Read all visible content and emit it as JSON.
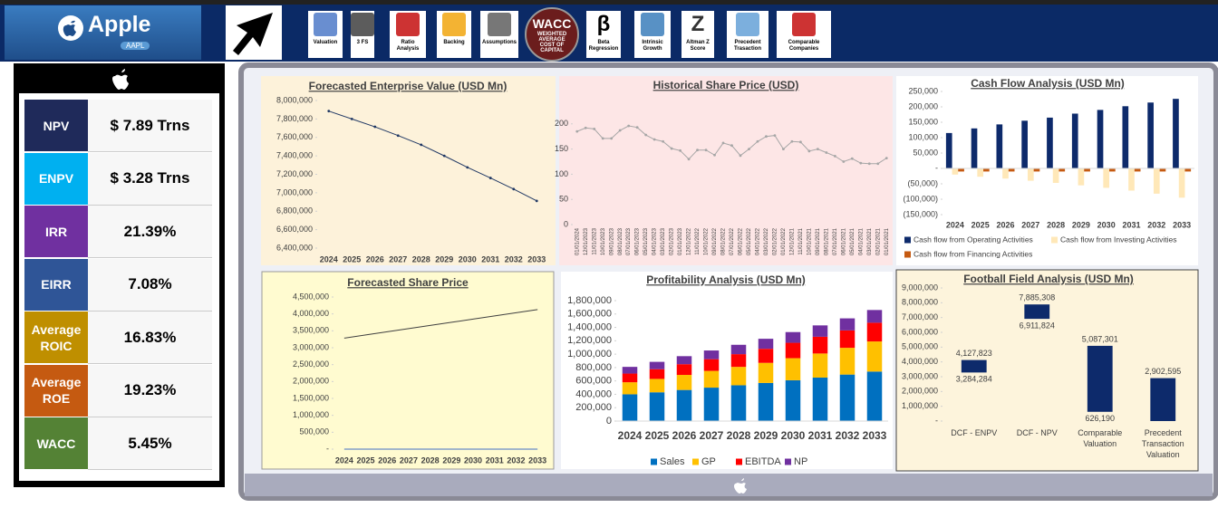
{
  "header": {
    "company": "Apple",
    "ticker": "AAPL"
  },
  "nav": [
    {
      "label": "Valuation"
    },
    {
      "label": "3 FS"
    },
    {
      "label": "Ratio Analysis"
    },
    {
      "label": "Backing"
    },
    {
      "label": "Assumptions"
    },
    {
      "label": "WACC",
      "sublabel": "WEIGHTED AVERAGE COST OF CAPITAL"
    },
    {
      "icon": "β",
      "label": "Beta Regression"
    },
    {
      "label": "Intrinsic Growth"
    },
    {
      "icon": "Z",
      "label": "Altman Z Score"
    },
    {
      "label": "Precedent Trasaction"
    },
    {
      "label": "Comparable Companies"
    }
  ],
  "kpis": [
    {
      "label": "NPV",
      "value": "$ 7.89 Trns",
      "color": "#1f2a5a"
    },
    {
      "label": "ENPV",
      "value": "$ 3.28 Trns",
      "color": "#00b0f0"
    },
    {
      "label": "IRR",
      "value": "21.39%",
      "color": "#7030a0"
    },
    {
      "label": "EIRR",
      "value": "7.08%",
      "color": "#2f5597"
    },
    {
      "label": "Average ROIC",
      "value": "16.83%",
      "color": "#bf8f00"
    },
    {
      "label": "Average ROE",
      "value": "19.23%",
      "color": "#c55a11"
    },
    {
      "label": "WACC",
      "value": "5.45%",
      "color": "#548235"
    }
  ],
  "chart_data": [
    {
      "type": "line",
      "title": "Forecasted Enterprise Value (USD Mn)",
      "categories": [
        "2024",
        "2025",
        "2026",
        "2027",
        "2028",
        "2029",
        "2030",
        "2031",
        "2032",
        "2033"
      ],
      "values": [
        7885308,
        7800000,
        7715000,
        7620000,
        7520000,
        7400000,
        7275000,
        7160000,
        7040000,
        6911824
      ],
      "color": "#203864",
      "markers": true,
      "ylim": [
        6400000,
        8000000
      ],
      "yticks": [
        {
          "value": 6400000,
          "label": "6,400,000"
        },
        {
          "value": 6600000,
          "label": "6,600,000"
        },
        {
          "value": 6800000,
          "label": "6,800,000"
        },
        {
          "value": 7000000,
          "label": "7,000,000"
        },
        {
          "value": 7200000,
          "label": "7,200,000"
        },
        {
          "value": 7400000,
          "label": "7,400,000"
        },
        {
          "value": 7600000,
          "label": "7,600,000"
        },
        {
          "value": 7800000,
          "label": "7,800,000"
        },
        {
          "value": 8000000,
          "label": "8,000,000"
        }
      ]
    },
    {
      "type": "line",
      "title": "Historical Share Price (USD)",
      "categories": [
        "01/01/2024",
        "12/01/2023",
        "11/01/2023",
        "10/01/2023",
        "09/01/2023",
        "08/01/2023",
        "07/01/2023",
        "06/01/2023",
        "05/01/2023",
        "04/01/2023",
        "03/01/2023",
        "02/01/2023",
        "01/01/2023",
        "12/01/2022",
        "11/01/2022",
        "10/01/2022",
        "09/01/2022",
        "08/01/2022",
        "07/01/2022",
        "06/01/2022",
        "05/01/2022",
        "04/01/2022",
        "03/01/2022",
        "02/01/2022",
        "01/01/2022",
        "12/01/2021",
        "11/01/2021",
        "10/01/2021",
        "09/01/2021",
        "08/01/2021",
        "07/01/2021",
        "06/01/2021",
        "05/01/2021",
        "04/01/2021",
        "03/01/2021",
        "02/01/2021",
        "01/01/2021"
      ],
      "values": [
        185,
        192,
        190,
        171,
        171,
        187,
        196,
        193,
        178,
        169,
        165,
        151,
        147,
        130,
        148,
        148,
        138,
        162,
        157,
        137,
        150,
        165,
        175,
        177,
        150,
        165,
        164,
        146,
        150,
        143,
        136,
        125,
        131,
        122,
        121,
        121,
        132
      ],
      "color": "#a6a6a6",
      "markers": true,
      "ylim": [
        0,
        250
      ],
      "yticks": [
        0,
        50,
        100,
        150,
        200
      ]
    },
    {
      "type": "bar",
      "title": "Cash Flow Analysis (USD Mn)",
      "categories": [
        "2024",
        "2025",
        "2026",
        "2027",
        "2028",
        "2029",
        "2030",
        "2031",
        "2032",
        "2033"
      ],
      "series": [
        {
          "name": "Cash flow from Operating Activities",
          "color": "#0d2a6b",
          "values": [
            115000,
            130000,
            143000,
            155000,
            165000,
            178000,
            190000,
            202000,
            214000,
            226000
          ]
        },
        {
          "name": "Cash flow from Investing Activities",
          "color": "#ffe8b8",
          "values": [
            -20000,
            -27000,
            -33000,
            -40000,
            -47000,
            -55000,
            -63000,
            -72000,
            -82000,
            -95000
          ]
        },
        {
          "name": "Cash flow from Financing Activities",
          "color": "#c55a11",
          "values": [
            -10000,
            -10000,
            -10000,
            -10000,
            -10000,
            -10000,
            -10000,
            -10000,
            -10000,
            -10000
          ]
        }
      ],
      "ylim": [
        -150000,
        250000
      ],
      "yticks": [
        {
          "value": -150000,
          "label": "(150,000)"
        },
        {
          "value": -100000,
          "label": "(100,000)"
        },
        {
          "value": -50000,
          "label": "(50,000)"
        },
        {
          "value": 0,
          "label": "-"
        },
        {
          "value": 50000,
          "label": "50,000"
        },
        {
          "value": 100000,
          "label": "100,000"
        },
        {
          "value": 150000,
          "label": "150,000"
        },
        {
          "value": 200000,
          "label": "200,000"
        },
        {
          "value": 250000,
          "label": "250,000"
        }
      ]
    },
    {
      "type": "line",
      "title": "Forecasted Share Price",
      "categories": [
        "2024",
        "2025",
        "2026",
        "2027",
        "2028",
        "2029",
        "2030",
        "2031",
        "2032",
        "2033"
      ],
      "series": [
        {
          "color": "#404040",
          "values": [
            3284284,
            3378000,
            3472000,
            3565000,
            3659000,
            3753000,
            3846000,
            3940000,
            4034000,
            4127823
          ]
        },
        {
          "color": "#4472c4",
          "values": [
            0,
            0,
            0,
            0,
            0,
            0,
            0,
            0,
            0,
            0
          ]
        }
      ],
      "ylim": [
        0,
        4500000
      ],
      "yticks": [
        {
          "value": 0,
          "label": "-"
        },
        {
          "value": 500000,
          "label": "500,000"
        },
        {
          "value": 1000000,
          "label": "1,000,000"
        },
        {
          "value": 1500000,
          "label": "1,500,000"
        },
        {
          "value": 2000000,
          "label": "2,000,000"
        },
        {
          "value": 2500000,
          "label": "2,500,000"
        },
        {
          "value": 3000000,
          "label": "3,000,000"
        },
        {
          "value": 3500000,
          "label": "3,500,000"
        },
        {
          "value": 4000000,
          "label": "4,000,000"
        },
        {
          "value": 4500000,
          "label": "4,500,000"
        }
      ]
    },
    {
      "type": "bar",
      "stacked": true,
      "title": "Profitability Analysis (USD Mn)",
      "categories": [
        "2024",
        "2025",
        "2026",
        "2027",
        "2028",
        "2029",
        "2030",
        "2031",
        "2032",
        "2033"
      ],
      "series": [
        {
          "name": "Sales",
          "color": "#0070c0",
          "values": [
            400000,
            430000,
            465000,
            500000,
            535000,
            570000,
            610000,
            650000,
            695000,
            740000
          ]
        },
        {
          "name": "GP",
          "color": "#ffc000",
          "values": [
            180000,
            200000,
            225000,
            250000,
            275000,
            300000,
            330000,
            360000,
            400000,
            450000
          ]
        },
        {
          "name": "EBITDA",
          "color": "#ff0000",
          "values": [
            130000,
            145000,
            160000,
            175000,
            190000,
            210000,
            230000,
            250000,
            260000,
            280000
          ]
        },
        {
          "name": "NP",
          "color": "#7030a0",
          "values": [
            100000,
            110000,
            120000,
            130000,
            140000,
            150000,
            160000,
            170000,
            180000,
            190000
          ]
        }
      ],
      "ylim": [
        0,
        1800000
      ],
      "yticks": [
        0,
        {
          "value": 200000,
          "label": "200,000"
        },
        {
          "value": 400000,
          "label": "400,000"
        },
        {
          "value": 600000,
          "label": "600,000"
        },
        {
          "value": 800000,
          "label": "800,000"
        },
        {
          "value": 1000000,
          "label": "1,000,000"
        },
        {
          "value": 1200000,
          "label": "1,200,000"
        },
        {
          "value": 1400000,
          "label": "1,400,000"
        },
        {
          "value": 1600000,
          "label": "1,600,000"
        },
        {
          "value": 1800000,
          "label": "1,800,000"
        }
      ]
    },
    {
      "type": "range_bar",
      "title": "Football Field Analysis (USD Mn)",
      "categories": [
        "DCF - ENPV",
        "DCF - NPV",
        "Comparable Valuation",
        "Precedent Transaction Valuation"
      ],
      "low": [
        3284284,
        6911824,
        626190,
        0
      ],
      "low_labels": [
        "3,284,284",
        "6,911,824",
        "626,190",
        null
      ],
      "high": [
        4127823,
        7885308,
        5087301,
        2902595
      ],
      "high_labels": [
        "4,127,823",
        "7,885,308",
        "5,087,301",
        "2,902,595"
      ],
      "color": "#0d2a6b",
      "ylim": [
        0,
        9000000
      ],
      "yticks": [
        {
          "value": 0,
          "label": "-"
        },
        {
          "value": 1000000,
          "label": "1,000,000"
        },
        {
          "value": 2000000,
          "label": "2,000,000"
        },
        {
          "value": 3000000,
          "label": "3,000,000"
        },
        {
          "value": 4000000,
          "label": "4,000,000"
        },
        {
          "value": 5000000,
          "label": "5,000,000"
        },
        {
          "value": 6000000,
          "label": "6,000,000"
        },
        {
          "value": 7000000,
          "label": "7,000,000"
        },
        {
          "value": 8000000,
          "label": "8,000,000"
        },
        {
          "value": 9000000,
          "label": "9,000,000"
        }
      ]
    }
  ]
}
